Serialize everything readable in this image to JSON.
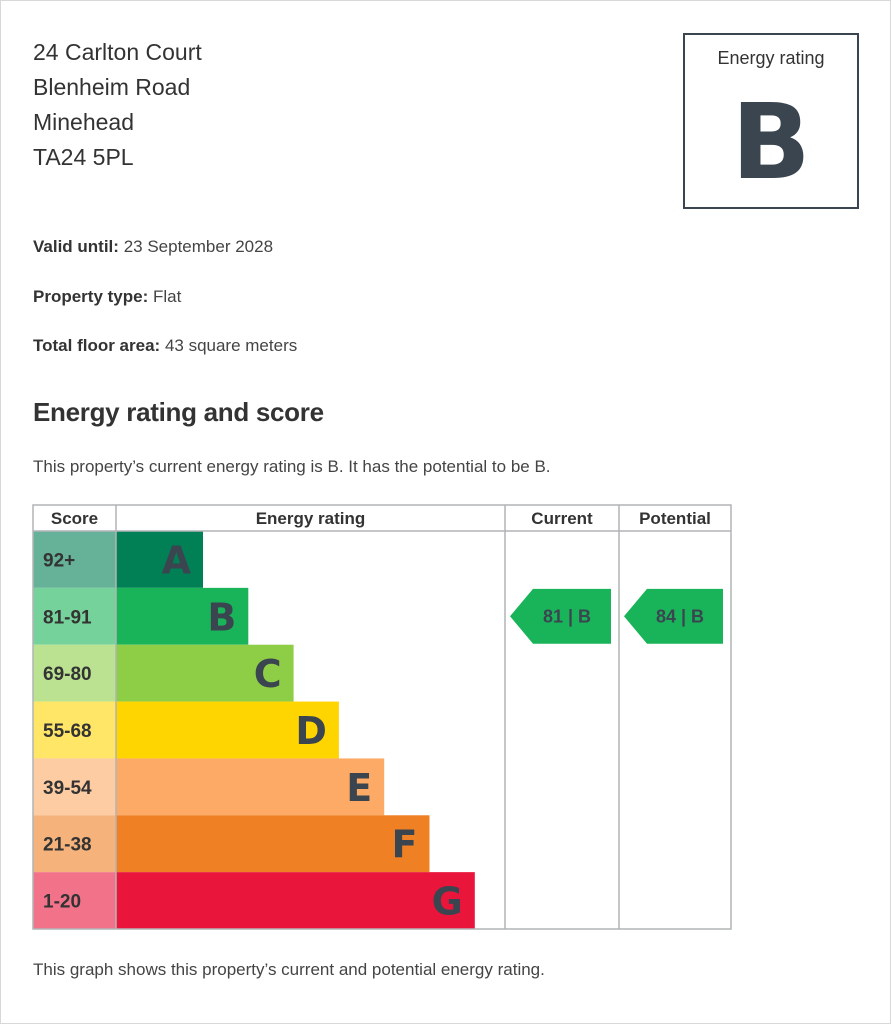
{
  "address": {
    "line1": "24 Carlton Court",
    "line2": "Blenheim Road",
    "line3": "Minehead",
    "postcode": "TA24 5PL"
  },
  "rating_box": {
    "label": "Energy rating",
    "letter": "B"
  },
  "details": {
    "valid_label": "Valid until:",
    "valid_value": "23 September 2028",
    "type_label": "Property type:",
    "type_value": "Flat",
    "area_label": "Total floor area:",
    "area_value": "43 square meters"
  },
  "section_title": "Energy rating and score",
  "summary": "This property’s current energy rating is B. It has the potential to be B.",
  "footer_note": "This graph shows this property’s current and potential energy rating.",
  "chart_data": {
    "type": "bar",
    "columns": [
      "Score",
      "Energy rating",
      "Current",
      "Potential"
    ],
    "bands": [
      {
        "letter": "A",
        "range": "92+",
        "min": 92,
        "max": null,
        "color": "#008054",
        "light": "#66b298"
      },
      {
        "letter": "B",
        "range": "81-91",
        "min": 81,
        "max": 91,
        "color": "#19b459",
        "light": "#75d29b"
      },
      {
        "letter": "C",
        "range": "69-80",
        "min": 69,
        "max": 80,
        "color": "#8dce46",
        "light": "#bbe290"
      },
      {
        "letter": "D",
        "range": "55-68",
        "min": 55,
        "max": 68,
        "color": "#ffd500",
        "light": "#ffe666"
      },
      {
        "letter": "E",
        "range": "39-54",
        "min": 39,
        "max": 54,
        "color": "#fcaa65",
        "light": "#fdcca3"
      },
      {
        "letter": "F",
        "range": "21-38",
        "min": 21,
        "max": 38,
        "color": "#ef8023",
        "light": "#f5b37b"
      },
      {
        "letter": "G",
        "range": "1-20",
        "min": 1,
        "max": 20,
        "color": "#e9153b",
        "light": "#f27389"
      }
    ],
    "current": {
      "score": 81,
      "letter": "B",
      "label": "81 | B"
    },
    "potential": {
      "score": 84,
      "letter": "B",
      "label": "84 | B"
    },
    "colors": {
      "text": "#333333",
      "border": "#b1b4b6",
      "letter": "#3b4550"
    }
  }
}
